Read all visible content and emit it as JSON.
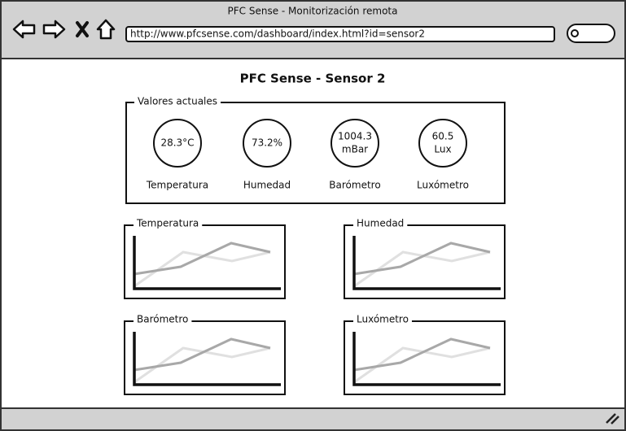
{
  "window": {
    "title": "PFC Sense - Monitorización remota",
    "url": "http://www.pfcsense.com/dashboard/index.html?id=sensor2"
  },
  "page": {
    "title": "PFC Sense - Sensor 2"
  },
  "current_values": {
    "legend": "Valores actuales",
    "gauges": [
      {
        "lines": [
          "28.3°C"
        ],
        "label": "Temperatura"
      },
      {
        "lines": [
          "73.2%"
        ],
        "label": "Humedad"
      },
      {
        "lines": [
          "1004.3",
          "mBar"
        ],
        "label": "Barómetro"
      },
      {
        "lines": [
          "60.5",
          "Lux"
        ],
        "label": "Luxómetro"
      }
    ]
  },
  "panels": [
    {
      "title": "Temperatura"
    },
    {
      "title": "Humedad"
    },
    {
      "title": "Barómetro"
    },
    {
      "title": "Luxómetro"
    }
  ]
}
